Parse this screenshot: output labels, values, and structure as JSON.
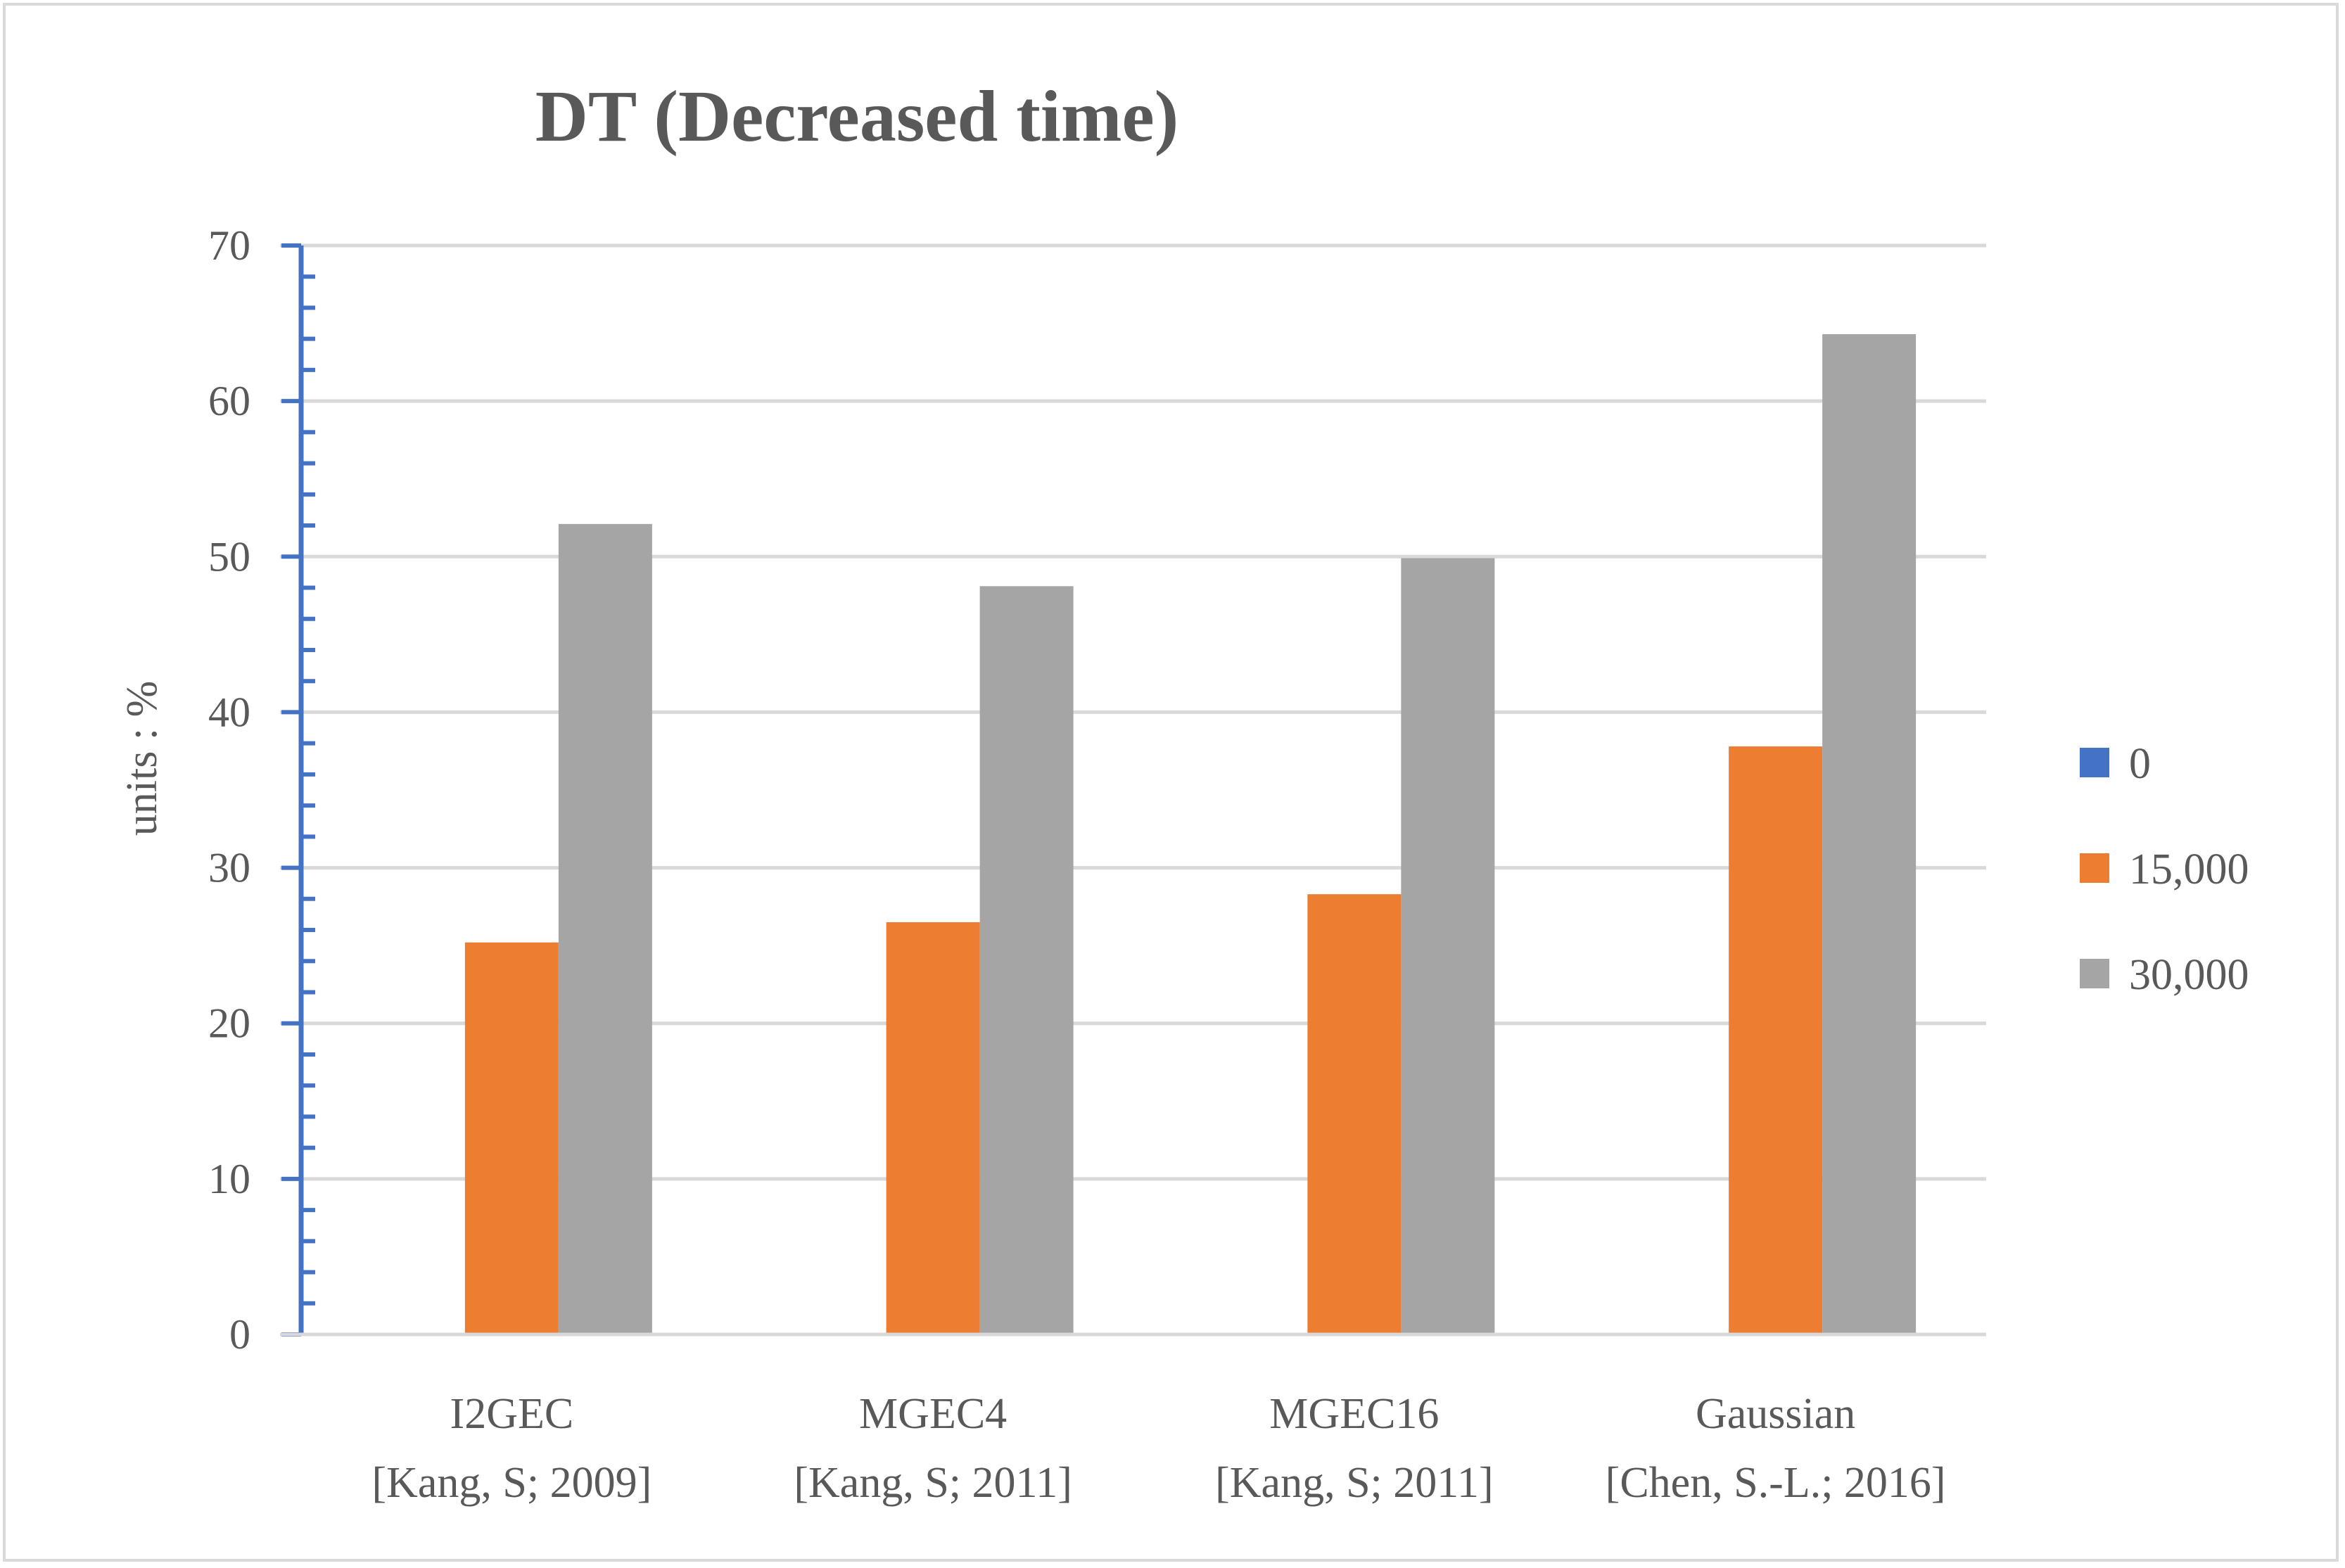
{
  "chart_data": {
    "type": "bar",
    "title": "DT (Decreased time)",
    "xlabel": "",
    "ylabel": "units : %",
    "ylim": [
      0,
      70
    ],
    "yticks": [
      0,
      10,
      20,
      30,
      40,
      50,
      60,
      70
    ],
    "grid": true,
    "legend_position": "right",
    "categories": [
      [
        "I2GEC",
        "[Kang, S; 2009]"
      ],
      [
        "MGEC4",
        "[Kang, S; 2011]"
      ],
      [
        "MGEC16",
        "[Kang, S; 2011]"
      ],
      [
        "Gaussian",
        "[Chen, S.-L.; 2016]"
      ]
    ],
    "series": [
      {
        "name": "0",
        "color": "#4472c4",
        "values": [
          0,
          0,
          0,
          0
        ]
      },
      {
        "name": "15,000",
        "color": "#ed7d31",
        "values": [
          25.2,
          26.5,
          28.3,
          37.8
        ]
      },
      {
        "name": "30,000",
        "color": "#a5a5a5",
        "values": [
          52.1,
          48.1,
          49.9,
          64.3
        ]
      }
    ]
  }
}
